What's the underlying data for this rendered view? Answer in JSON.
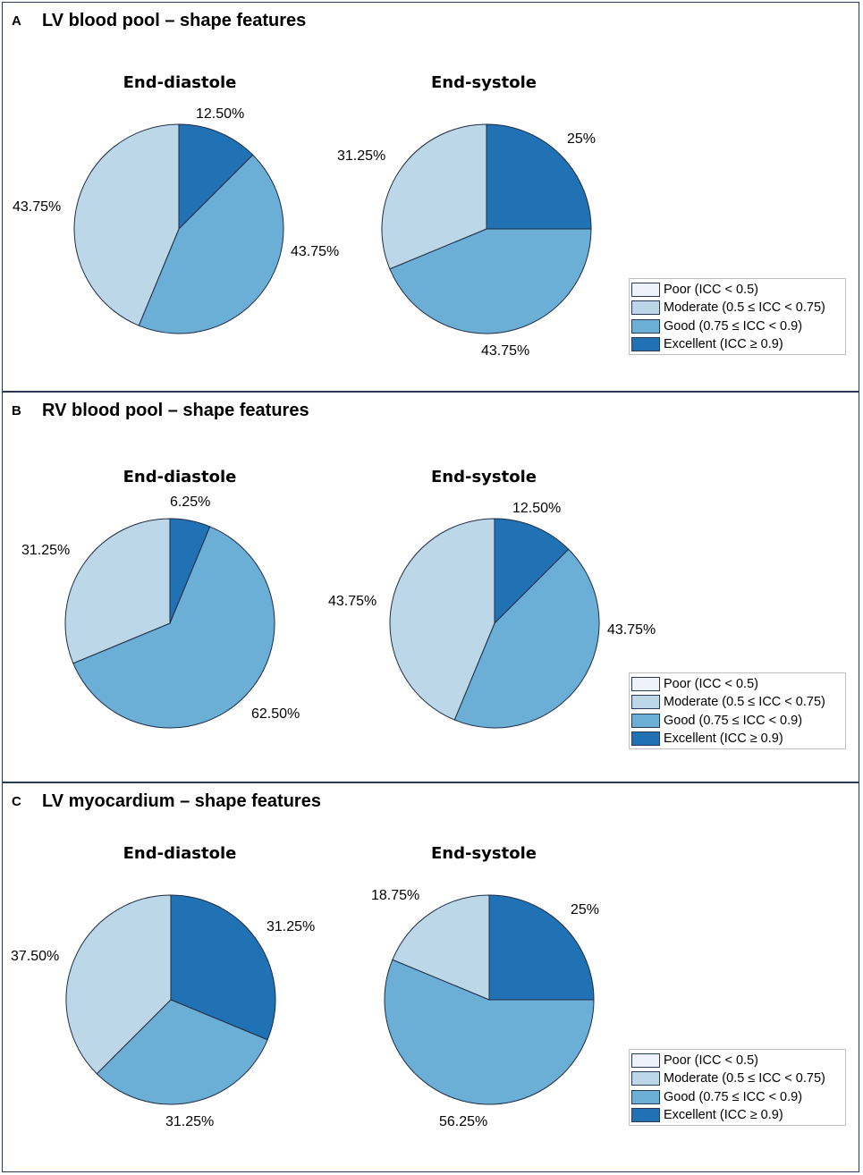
{
  "colors": {
    "poor": "#eef3fb",
    "moderate": "#bcd7e7",
    "good": "#6baed6",
    "excellent": "#2171b5",
    "stroke": "#1f2d45"
  },
  "legend": [
    {
      "key": "poor",
      "label": "Poor (ICC < 0.5)"
    },
    {
      "key": "moderate",
      "label": "Moderate (0.5 ≤ ICC < 0.75)"
    },
    {
      "key": "good",
      "label": "Good (0.75 ≤ ICC < 0.9)"
    },
    {
      "key": "excellent",
      "label": "Excellent (ICC ≥ 0.9)"
    }
  ],
  "panels": [
    {
      "letter": "A",
      "title": "LV blood pool – shape features"
    },
    {
      "letter": "B",
      "title": "RV blood pool – shape features"
    },
    {
      "letter": "C",
      "title": "LV myocardium – shape features"
    }
  ],
  "chart_data": [
    {
      "type": "pie",
      "panel": "A",
      "title": "End-diastole",
      "categories": [
        "Excellent",
        "Good",
        "Moderate"
      ],
      "values": [
        12.5,
        43.75,
        43.75
      ],
      "labels": [
        "12.50%",
        "43.75%",
        "43.75%"
      ]
    },
    {
      "type": "pie",
      "panel": "A",
      "title": "End-systole",
      "categories": [
        "Excellent",
        "Good",
        "Moderate"
      ],
      "values": [
        25,
        43.75,
        31.25
      ],
      "labels": [
        "25%",
        "43.75%",
        "31.25%"
      ]
    },
    {
      "type": "pie",
      "panel": "B",
      "title": "End-diastole",
      "categories": [
        "Excellent",
        "Good",
        "Moderate"
      ],
      "values": [
        6.25,
        62.5,
        31.25
      ],
      "labels": [
        "6.25%",
        "62.50%",
        "31.25%"
      ]
    },
    {
      "type": "pie",
      "panel": "B",
      "title": "End-systole",
      "categories": [
        "Excellent",
        "Good",
        "Moderate"
      ],
      "values": [
        12.5,
        43.75,
        43.75
      ],
      "labels": [
        "12.50%",
        "43.75%",
        "43.75%"
      ]
    },
    {
      "type": "pie",
      "panel": "C",
      "title": "End-diastole",
      "categories": [
        "Excellent",
        "Good",
        "Moderate"
      ],
      "values": [
        31.25,
        31.25,
        37.5
      ],
      "labels": [
        "31.25%",
        "31.25%",
        "37.50%"
      ]
    },
    {
      "type": "pie",
      "panel": "C",
      "title": "End-systole",
      "categories": [
        "Excellent",
        "Good",
        "Moderate"
      ],
      "values": [
        25,
        56.25,
        18.75
      ],
      "labels": [
        "25%",
        "56.25%",
        "18.75%"
      ]
    }
  ]
}
